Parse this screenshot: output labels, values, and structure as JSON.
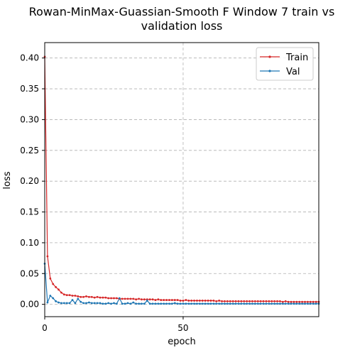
{
  "chart_data": {
    "type": "line",
    "title_lines": [
      "Rowan-MinMax-Guassian-Smooth F Window 7 train vs",
      "validation loss"
    ],
    "xlabel": "epoch",
    "ylabel": "loss",
    "xlim": [
      0,
      99
    ],
    "ylim": [
      -0.02,
      0.425
    ],
    "xticks": [
      0,
      50
    ],
    "yticks": [
      0.0,
      0.05,
      0.1,
      0.15,
      0.2,
      0.25,
      0.3,
      0.35,
      0.4
    ],
    "ytick_labels": [
      "0.00",
      "0.05",
      "0.10",
      "0.15",
      "0.20",
      "0.25",
      "0.30",
      "0.35",
      "0.40"
    ],
    "grid": true,
    "legend_position": "top-right",
    "series": [
      {
        "name": "Train",
        "color": "#d62728",
        "values": [
          0.402,
          0.078,
          0.042,
          0.033,
          0.028,
          0.024,
          0.019,
          0.016,
          0.015,
          0.015,
          0.014,
          0.014,
          0.013,
          0.012,
          0.012,
          0.013,
          0.012,
          0.012,
          0.011,
          0.012,
          0.011,
          0.011,
          0.011,
          0.01,
          0.01,
          0.01,
          0.01,
          0.009,
          0.009,
          0.009,
          0.009,
          0.009,
          0.009,
          0.008,
          0.009,
          0.008,
          0.008,
          0.008,
          0.008,
          0.008,
          0.007,
          0.008,
          0.007,
          0.007,
          0.007,
          0.007,
          0.007,
          0.007,
          0.007,
          0.006,
          0.006,
          0.007,
          0.006,
          0.006,
          0.006,
          0.006,
          0.006,
          0.006,
          0.006,
          0.006,
          0.006,
          0.006,
          0.005,
          0.006,
          0.005,
          0.005,
          0.005,
          0.005,
          0.005,
          0.005,
          0.005,
          0.005,
          0.005,
          0.005,
          0.005,
          0.005,
          0.005,
          0.005,
          0.005,
          0.005,
          0.005,
          0.005,
          0.005,
          0.005,
          0.005,
          0.005,
          0.004,
          0.005,
          0.004,
          0.004,
          0.004,
          0.004,
          0.004,
          0.004,
          0.004,
          0.004,
          0.004,
          0.004,
          0.004,
          0.004
        ]
      },
      {
        "name": "Val",
        "color": "#1f77b4",
        "values": [
          0.066,
          0.003,
          0.014,
          0.01,
          0.005,
          0.003,
          0.002,
          0.002,
          0.002,
          0.002,
          0.007,
          0.002,
          0.009,
          0.004,
          0.002,
          0.002,
          0.003,
          0.002,
          0.002,
          0.002,
          0.002,
          0.001,
          0.001,
          0.002,
          0.001,
          0.002,
          0.001,
          0.01,
          0.001,
          0.001,
          0.002,
          0.001,
          0.003,
          0.001,
          0.001,
          0.001,
          0.001,
          0.006,
          0.001,
          0.001,
          0.001,
          0.001,
          0.001,
          0.001,
          0.001,
          0.001,
          0.001,
          0.002,
          0.001,
          0.001,
          0.001,
          0.001,
          0.001,
          0.001,
          0.001,
          0.001,
          0.001,
          0.001,
          0.001,
          0.001,
          0.001,
          0.001,
          0.001,
          0.001,
          0.001,
          0.001,
          0.001,
          0.001,
          0.001,
          0.001,
          0.001,
          0.001,
          0.001,
          0.001,
          0.001,
          0.001,
          0.001,
          0.001,
          0.001,
          0.001,
          0.001,
          0.001,
          0.001,
          0.001,
          0.001,
          0.001,
          0.001,
          0.001,
          0.001,
          0.001,
          0.001,
          0.001,
          0.001,
          0.001,
          0.001,
          0.001,
          0.001,
          0.001,
          0.001,
          0.001
        ]
      }
    ]
  }
}
